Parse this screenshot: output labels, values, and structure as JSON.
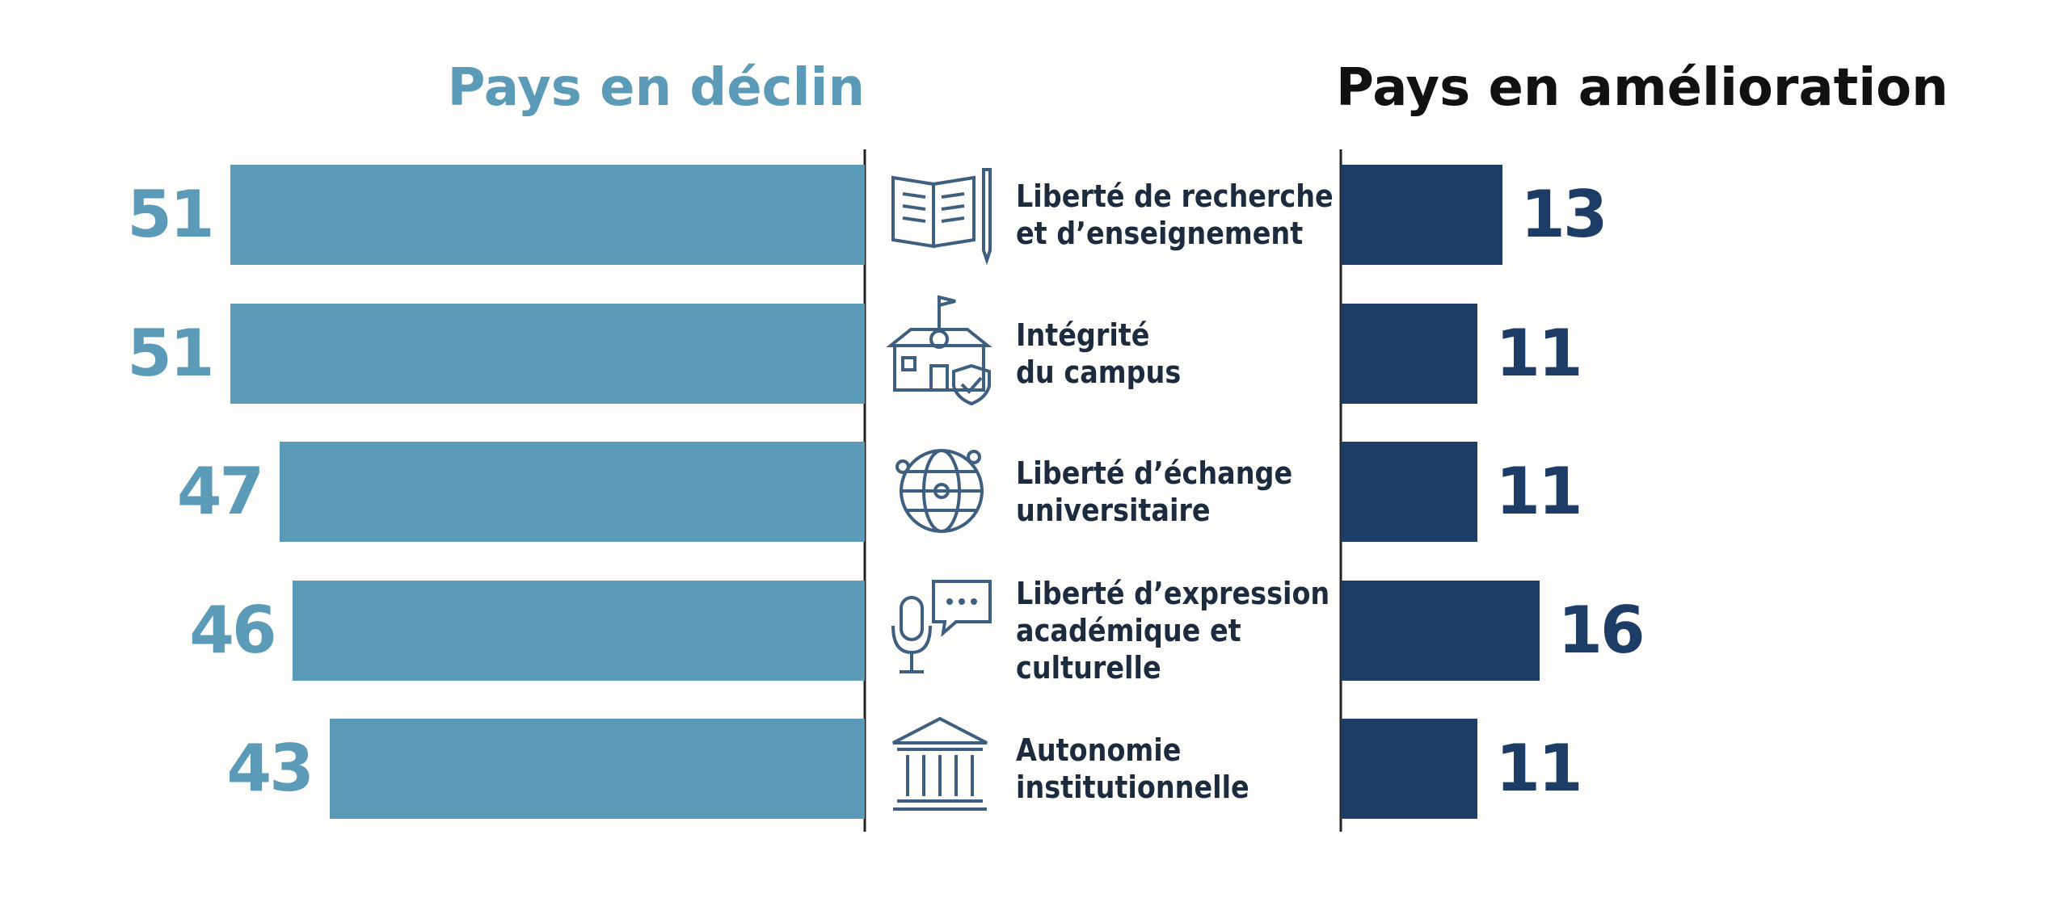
{
  "chart_data": {
    "type": "butterfly",
    "categories": [
      "Liberté de recherche\net d’enseignement",
      "Intégrité\ndu campus",
      "Liberté d’échange\nuniversitaire",
      "Liberté d’expression\nacadémique et\nculturelle",
      "Autonomie\ninstitutionnelle"
    ],
    "series": [
      {
        "name": "Pays en déclin",
        "color": "#5b9bb7",
        "values": [
          51,
          51,
          47,
          46,
          43
        ]
      },
      {
        "name": "Pays en amélioration",
        "color": "#1d3d66",
        "values": [
          13,
          11,
          11,
          16,
          11
        ]
      }
    ]
  }
}
